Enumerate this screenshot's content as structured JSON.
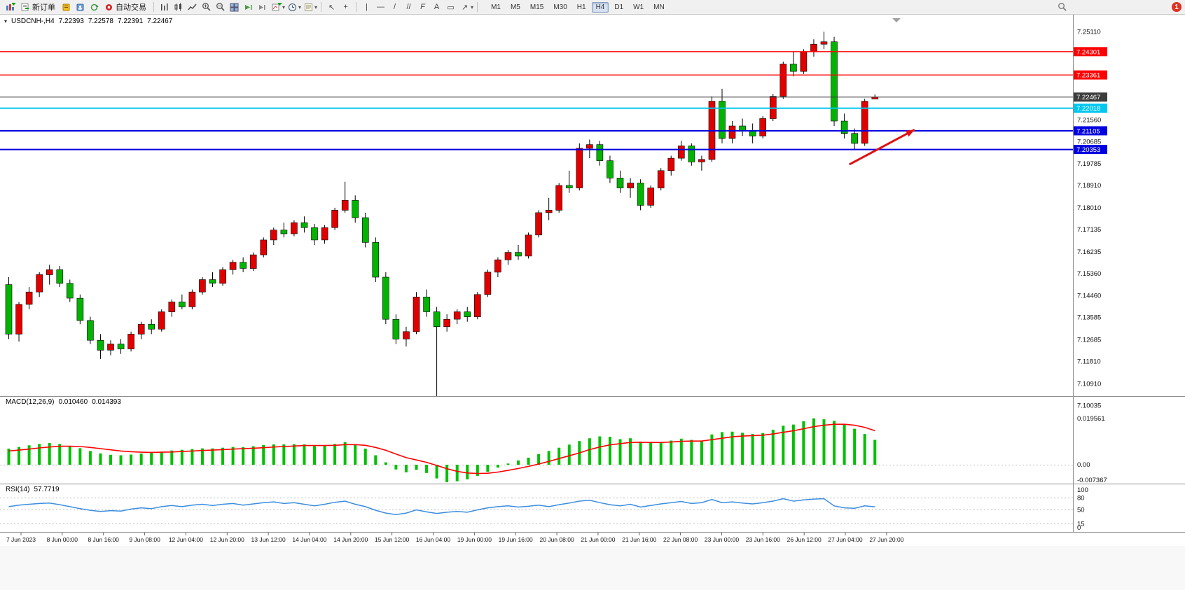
{
  "toolbar": {
    "new_order": "新订单",
    "auto_trading": "自动交易",
    "timeframes": [
      "M1",
      "M5",
      "M15",
      "M30",
      "H1",
      "H4",
      "D1",
      "W1",
      "MN"
    ],
    "active_timeframe": "H4",
    "notification_count": "1"
  },
  "header": {
    "symbol": "USDCNH-,H4",
    "open": "7.22393",
    "high": "7.22578",
    "low": "7.22391",
    "close": "7.22467"
  },
  "chart_data": {
    "type": "candlestick",
    "symbol": "USDCNH-",
    "timeframe": "H4",
    "bull_color": "#e00000",
    "bear_color": "#00b400",
    "y_range": [
      7.0986,
      7.2568
    ],
    "candles": [
      [
        7.149,
        7.152,
        7.127,
        7.129
      ],
      [
        7.129,
        7.142,
        7.126,
        7.141
      ],
      [
        7.141,
        7.148,
        7.139,
        7.146
      ],
      [
        7.146,
        7.154,
        7.144,
        7.153
      ],
      [
        7.153,
        7.157,
        7.149,
        7.155
      ],
      [
        7.155,
        7.1565,
        7.148,
        7.1495
      ],
      [
        7.1495,
        7.151,
        7.142,
        7.1435
      ],
      [
        7.1435,
        7.145,
        7.133,
        7.1345
      ],
      [
        7.1345,
        7.136,
        7.125,
        7.1265
      ],
      [
        7.1265,
        7.129,
        7.119,
        7.1225
      ],
      [
        7.1225,
        7.1265,
        7.1205,
        7.125
      ],
      [
        7.125,
        7.127,
        7.121,
        7.123
      ],
      [
        7.123,
        7.13,
        7.122,
        7.129
      ],
      [
        7.129,
        7.134,
        7.127,
        7.133
      ],
      [
        7.133,
        7.135,
        7.129,
        7.131
      ],
      [
        7.131,
        7.139,
        7.13,
        7.138
      ],
      [
        7.138,
        7.143,
        7.136,
        7.142
      ],
      [
        7.142,
        7.145,
        7.139,
        7.14
      ],
      [
        7.14,
        7.147,
        7.139,
        7.146
      ],
      [
        7.146,
        7.152,
        7.145,
        7.151
      ],
      [
        7.151,
        7.154,
        7.148,
        7.1495
      ],
      [
        7.1495,
        7.156,
        7.1485,
        7.155
      ],
      [
        7.155,
        7.159,
        7.153,
        7.158
      ],
      [
        7.158,
        7.16,
        7.154,
        7.1555
      ],
      [
        7.1555,
        7.162,
        7.1545,
        7.161
      ],
      [
        7.161,
        7.168,
        7.16,
        7.167
      ],
      [
        7.167,
        7.172,
        7.165,
        7.171
      ],
      [
        7.171,
        7.174,
        7.168,
        7.1695
      ],
      [
        7.1695,
        7.175,
        7.1685,
        7.174
      ],
      [
        7.174,
        7.1765,
        7.17,
        7.172
      ],
      [
        7.172,
        7.1735,
        7.165,
        7.167
      ],
      [
        7.167,
        7.173,
        7.1655,
        7.172
      ],
      [
        7.172,
        7.18,
        7.171,
        7.179
      ],
      [
        7.179,
        7.1905,
        7.178,
        7.183
      ],
      [
        7.183,
        7.185,
        7.174,
        7.176
      ],
      [
        7.176,
        7.178,
        7.164,
        7.166
      ],
      [
        7.166,
        7.168,
        7.15,
        7.152
      ],
      [
        7.152,
        7.154,
        7.133,
        7.135
      ],
      [
        7.135,
        7.137,
        7.125,
        7.127
      ],
      [
        7.127,
        7.132,
        7.124,
        7.13
      ],
      [
        7.13,
        7.146,
        7.129,
        7.144
      ],
      [
        7.144,
        7.147,
        7.136,
        7.138
      ],
      [
        7.138,
        7.14,
        7.104,
        7.132
      ],
      [
        7.132,
        7.137,
        7.13,
        7.135
      ],
      [
        7.135,
        7.139,
        7.133,
        7.138
      ],
      [
        7.138,
        7.14,
        7.134,
        7.136
      ],
      [
        7.136,
        7.146,
        7.135,
        7.145
      ],
      [
        7.145,
        7.155,
        7.144,
        7.154
      ],
      [
        7.154,
        7.16,
        7.152,
        7.159
      ],
      [
        7.159,
        7.163,
        7.157,
        7.162
      ],
      [
        7.162,
        7.165,
        7.159,
        7.1605
      ],
      [
        7.1605,
        7.17,
        7.1595,
        7.169
      ],
      [
        7.169,
        7.179,
        7.168,
        7.178
      ],
      [
        7.178,
        7.184,
        7.175,
        7.179
      ],
      [
        7.179,
        7.19,
        7.178,
        7.189
      ],
      [
        7.189,
        7.195,
        7.186,
        7.188
      ],
      [
        7.188,
        7.206,
        7.187,
        7.204
      ],
      [
        7.204,
        7.2075,
        7.2,
        7.2055
      ],
      [
        7.2055,
        7.207,
        7.197,
        7.199
      ],
      [
        7.199,
        7.201,
        7.19,
        7.192
      ],
      [
        7.192,
        7.195,
        7.186,
        7.188
      ],
      [
        7.188,
        7.192,
        7.184,
        7.19
      ],
      [
        7.19,
        7.1915,
        7.179,
        7.181
      ],
      [
        7.181,
        7.189,
        7.18,
        7.188
      ],
      [
        7.188,
        7.196,
        7.187,
        7.195
      ],
      [
        7.195,
        7.201,
        7.193,
        7.2
      ],
      [
        7.2,
        7.207,
        7.199,
        7.205
      ],
      [
        7.205,
        7.206,
        7.197,
        7.1985
      ],
      [
        7.1985,
        7.201,
        7.195,
        7.1995
      ],
      [
        7.1995,
        7.225,
        7.1985,
        7.223
      ],
      [
        7.223,
        7.228,
        7.206,
        7.208
      ],
      [
        7.208,
        7.215,
        7.206,
        7.213
      ],
      [
        7.213,
        7.216,
        7.209,
        7.211
      ],
      [
        7.211,
        7.214,
        7.206,
        7.209
      ],
      [
        7.209,
        7.217,
        7.208,
        7.216
      ],
      [
        7.216,
        7.226,
        7.215,
        7.225
      ],
      [
        7.225,
        7.239,
        7.224,
        7.238
      ],
      [
        7.238,
        7.243,
        7.233,
        7.235
      ],
      [
        7.235,
        7.244,
        7.234,
        7.243
      ],
      [
        7.243,
        7.248,
        7.241,
        7.246
      ],
      [
        7.246,
        7.2511,
        7.244,
        7.247
      ],
      [
        7.247,
        7.249,
        7.213,
        7.215
      ],
      [
        7.215,
        7.218,
        7.208,
        7.21
      ],
      [
        7.21,
        7.212,
        7.2035,
        7.206
      ],
      [
        7.206,
        7.224,
        7.205,
        7.223
      ],
      [
        7.2239,
        7.2258,
        7.2239,
        7.2247
      ]
    ],
    "price_axis_labels": [
      "7.25110",
      "7.21560",
      "7.20685",
      "7.19785",
      "7.18910",
      "7.18010",
      "7.17135",
      "7.16235",
      "7.15360",
      "7.14460",
      "7.13585",
      "7.12685",
      "7.11810",
      "7.10910",
      "7.10035"
    ],
    "hlines": [
      {
        "price": 7.24301,
        "label": "7.24301",
        "color": "#ff0000",
        "width": 1.3
      },
      {
        "price": 7.23361,
        "label": "7.23361",
        "color": "#ff0000",
        "width": 1.3
      },
      {
        "price": 7.22467,
        "label": "7.22467",
        "color": "#3c3c3c",
        "width": 1.2
      },
      {
        "price": 7.22018,
        "label": "7.22018",
        "color": "#00c6f0",
        "width": 2
      },
      {
        "price": 7.21105,
        "label": "7.21105",
        "color": "#0000e0",
        "width": 2
      },
      {
        "price": 7.20353,
        "label": "7.20353",
        "color": "#0000e0",
        "width": 2
      }
    ],
    "annotation_arrow": {
      "from_index": 82.8,
      "from_price": 7.1975,
      "to_index": 89.2,
      "to_price": 7.2115,
      "color": "#e01010"
    },
    "time_labels": [
      "7 Jun 2023",
      "8 Jun 00:00",
      "8 Jun 16:00",
      "9 Jun 08:00",
      "12 Jun 04:00",
      "12 Jun 20:00",
      "13 Jun 12:00",
      "14 Jun 04:00",
      "14 Jun 20:00",
      "15 Jun 12:00",
      "16 Jun 04:00",
      "19 Jun 00:00",
      "19 Jun 16:00",
      "20 Jun 08:00",
      "21 Jun 00:00",
      "21 Jun 16:00",
      "22 Jun 08:00",
      "23 Jun 00:00",
      "23 Jun 16:00",
      "26 Jun 12:00",
      "27 Jun 04:00",
      "27 Jun 20:00"
    ],
    "macd": {
      "label": "MACD(12,26,9)",
      "main_value": "0.010460",
      "signal_value": "0.014393",
      "axis_max": "0.019561",
      "axis_zero": "0.00",
      "axis_min": "-0.007367",
      "hist_color": "#00c000",
      "signal_color": "#ff0000",
      "histogram": [
        0.0068,
        0.0075,
        0.0082,
        0.0088,
        0.0092,
        0.0088,
        0.008,
        0.007,
        0.0058,
        0.0048,
        0.0042,
        0.004,
        0.0043,
        0.0047,
        0.005,
        0.0055,
        0.006,
        0.0063,
        0.0066,
        0.0069,
        0.0069,
        0.0072,
        0.0075,
        0.0075,
        0.0078,
        0.0083,
        0.0086,
        0.0086,
        0.0087,
        0.0086,
        0.0079,
        0.008,
        0.0088,
        0.0096,
        0.0085,
        0.0068,
        0.004,
        0.001,
        -0.002,
        -0.0032,
        -0.0022,
        -0.0035,
        -0.0058,
        -0.0074,
        -0.007,
        -0.0062,
        -0.0048,
        -0.003,
        -0.0012,
        0.0005,
        0.0018,
        0.003,
        0.0045,
        0.0058,
        0.0072,
        0.0085,
        0.01,
        0.0112,
        0.012,
        0.0118,
        0.0108,
        0.0112,
        0.0098,
        0.0092,
        0.0095,
        0.0102,
        0.011,
        0.0105,
        0.01,
        0.0128,
        0.0138,
        0.014,
        0.0135,
        0.013,
        0.0134,
        0.0148,
        0.0165,
        0.017,
        0.0184,
        0.0196,
        0.0192,
        0.0186,
        0.017,
        0.0152,
        0.013,
        0.0105
      ],
      "signal": [
        0.0058,
        0.0062,
        0.0066,
        0.0071,
        0.0075,
        0.0078,
        0.0078,
        0.0077,
        0.0073,
        0.0068,
        0.0063,
        0.0058,
        0.0055,
        0.0053,
        0.0052,
        0.0053,
        0.0054,
        0.0056,
        0.0058,
        0.006,
        0.0062,
        0.0064,
        0.0066,
        0.0068,
        0.007,
        0.0072,
        0.0075,
        0.0077,
        0.0079,
        0.0081,
        0.0081,
        0.0081,
        0.0082,
        0.0085,
        0.0085,
        0.0082,
        0.0073,
        0.0061,
        0.0045,
        0.003,
        0.002,
        0.001,
        -0.0003,
        -0.0017,
        -0.0028,
        -0.0035,
        -0.0037,
        -0.0036,
        -0.0031,
        -0.0024,
        -0.0016,
        -0.0007,
        0.0003,
        0.0014,
        0.0026,
        0.0038,
        0.005,
        0.0064,
        0.0075,
        0.0084,
        0.0089,
        0.0094,
        0.0095,
        0.0094,
        0.0094,
        0.0096,
        0.0099,
        0.01,
        0.01,
        0.0106,
        0.0112,
        0.0118,
        0.0121,
        0.0123,
        0.0125,
        0.013,
        0.0137,
        0.0144,
        0.0152,
        0.0161,
        0.0167,
        0.0171,
        0.0171,
        0.0167,
        0.0158,
        0.0144
      ]
    },
    "rsi": {
      "label": "RSI(14)",
      "value": "57.7719",
      "color": "#3b8de0",
      "levels": [
        "100",
        "80",
        "50",
        "15",
        "0"
      ],
      "values": [
        58,
        62,
        64,
        66,
        67,
        63,
        58,
        53,
        49,
        46,
        48,
        47,
        52,
        55,
        53,
        58,
        61,
        58,
        62,
        64,
        61,
        64,
        66,
        62,
        65,
        68,
        70,
        66,
        68,
        64,
        60,
        64,
        69,
        72,
        64,
        58,
        49,
        42,
        38,
        42,
        50,
        45,
        41,
        44,
        46,
        44,
        50,
        55,
        58,
        60,
        57,
        59,
        62,
        58,
        63,
        67,
        72,
        74,
        68,
        63,
        60,
        64,
        57,
        61,
        65,
        68,
        71,
        66,
        68,
        76,
        68,
        70,
        67,
        65,
        68,
        72,
        78,
        72,
        75,
        77,
        78,
        60,
        55,
        54,
        60,
        57.77
      ]
    }
  }
}
